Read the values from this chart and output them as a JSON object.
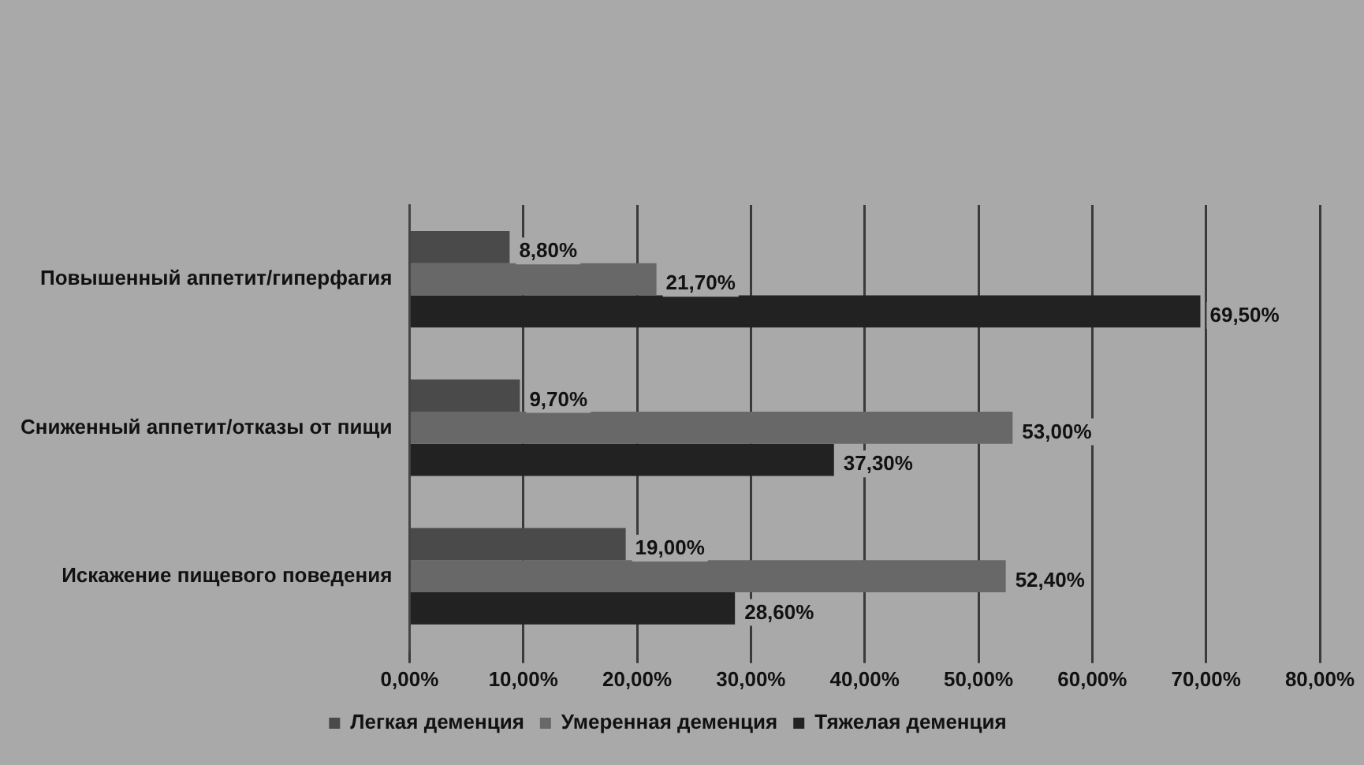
{
  "chart_data": {
    "type": "bar",
    "orientation": "horizontal",
    "categories": [
      "Повышенный аппетит/гиперфагия",
      "Сниженный аппетит/отказы от пищи",
      "Искажение пищевого поведения"
    ],
    "series": [
      {
        "name": "Легкая деменция",
        "color": "#4a4a4a",
        "values": [
          8.8,
          9.7,
          19.0
        ],
        "value_labels": [
          "8,80%",
          "9,70%",
          "19,00%"
        ]
      },
      {
        "name": "Умеренная деменция",
        "color": "#686868",
        "values": [
          21.7,
          53.0,
          52.4
        ],
        "value_labels": [
          "21,70%",
          "53,00%",
          "52,40%"
        ]
      },
      {
        "name": "Тяжелая деменция",
        "color": "#222222",
        "values": [
          69.5,
          37.3,
          28.6
        ],
        "value_labels": [
          "69,50%",
          "37,30%",
          "28,60%"
        ]
      }
    ],
    "xlim": [
      0,
      80
    ],
    "xticks": [
      {
        "value": 0,
        "label": "0,00%"
      },
      {
        "value": 10,
        "label": "10,00%"
      },
      {
        "value": 20,
        "label": "20,00%"
      },
      {
        "value": 30,
        "label": "30,00%"
      },
      {
        "value": 40,
        "label": "40,00%"
      },
      {
        "value": 50,
        "label": "50,00%"
      },
      {
        "value": 60,
        "label": "60,00%"
      },
      {
        "value": 70,
        "label": "70,00%"
      },
      {
        "value": 80,
        "label": "80,00%"
      }
    ],
    "grid": "x",
    "legend": "bottom"
  }
}
